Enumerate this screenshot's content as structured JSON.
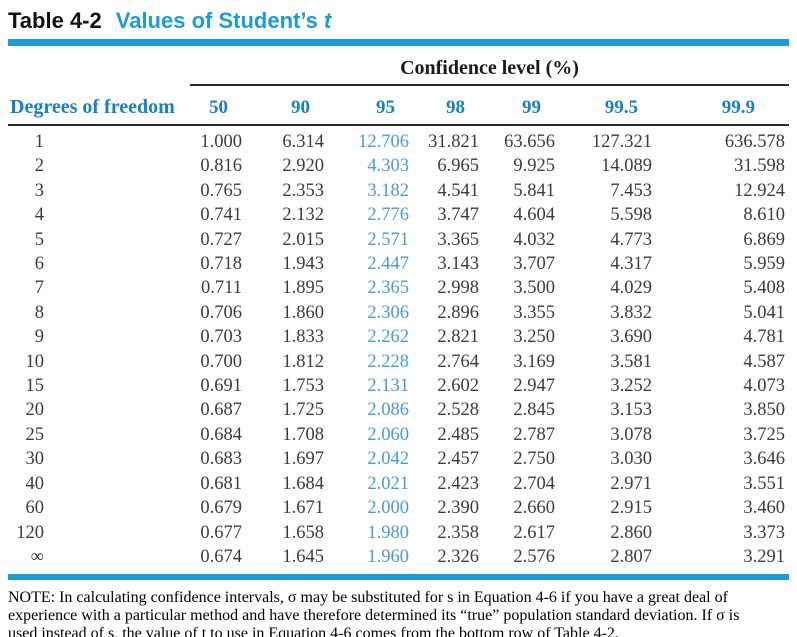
{
  "title": {
    "label": "Table 4-2",
    "subtitle": "Values of Student’s",
    "subtitle_suffix": "t"
  },
  "colors": {
    "accent_cyan": "#1b9bd7",
    "header_blue": "#1781c5",
    "highlight_blue": "#4a9bd3",
    "body_text": "#3c3c3c"
  },
  "table": {
    "group_header": "Confidence level (%)",
    "row_header_label": "Degrees of freedom",
    "columns": [
      "50",
      "90",
      "95",
      "98",
      "99",
      "99.5",
      "99.9"
    ],
    "highlight_column": "95",
    "rows": [
      {
        "df": "1",
        "values": [
          "1.000",
          "6.314",
          "12.706",
          "31.821",
          "63.656",
          "127.321",
          "636.578"
        ]
      },
      {
        "df": "2",
        "values": [
          "0.816",
          "2.920",
          "4.303",
          "6.965",
          "9.925",
          "14.089",
          "31.598"
        ]
      },
      {
        "df": "3",
        "values": [
          "0.765",
          "2.353",
          "3.182",
          "4.541",
          "5.841",
          "7.453",
          "12.924"
        ]
      },
      {
        "df": "4",
        "values": [
          "0.741",
          "2.132",
          "2.776",
          "3.747",
          "4.604",
          "5.598",
          "8.610"
        ]
      },
      {
        "df": "5",
        "values": [
          "0.727",
          "2.015",
          "2.571",
          "3.365",
          "4.032",
          "4.773",
          "6.869"
        ]
      },
      {
        "df": "6",
        "values": [
          "0.718",
          "1.943",
          "2.447",
          "3.143",
          "3.707",
          "4.317",
          "5.959"
        ]
      },
      {
        "df": "7",
        "values": [
          "0.711",
          "1.895",
          "2.365",
          "2.998",
          "3.500",
          "4.029",
          "5.408"
        ]
      },
      {
        "df": "8",
        "values": [
          "0.706",
          "1.860",
          "2.306",
          "2.896",
          "3.355",
          "3.832",
          "5.041"
        ]
      },
      {
        "df": "9",
        "values": [
          "0.703",
          "1.833",
          "2.262",
          "2.821",
          "3.250",
          "3.690",
          "4.781"
        ]
      },
      {
        "df": "10",
        "values": [
          "0.700",
          "1.812",
          "2.228",
          "2.764",
          "3.169",
          "3.581",
          "4.587"
        ]
      },
      {
        "df": "15",
        "values": [
          "0.691",
          "1.753",
          "2.131",
          "2.602",
          "2.947",
          "3.252",
          "4.073"
        ]
      },
      {
        "df": "20",
        "values": [
          "0.687",
          "1.725",
          "2.086",
          "2.528",
          "2.845",
          "3.153",
          "3.850"
        ]
      },
      {
        "df": "25",
        "values": [
          "0.684",
          "1.708",
          "2.060",
          "2.485",
          "2.787",
          "3.078",
          "3.725"
        ]
      },
      {
        "df": "30",
        "values": [
          "0.683",
          "1.697",
          "2.042",
          "2.457",
          "2.750",
          "3.030",
          "3.646"
        ]
      },
      {
        "df": "40",
        "values": [
          "0.681",
          "1.684",
          "2.021",
          "2.423",
          "2.704",
          "2.971",
          "3.551"
        ]
      },
      {
        "df": "60",
        "values": [
          "0.679",
          "1.671",
          "2.000",
          "2.390",
          "2.660",
          "2.915",
          "3.460"
        ]
      },
      {
        "df": "120",
        "values": [
          "0.677",
          "1.658",
          "1.980",
          "2.358",
          "2.617",
          "2.860",
          "3.373"
        ]
      },
      {
        "df": "∞",
        "values": [
          "0.674",
          "1.645",
          "1.960",
          "2.326",
          "2.576",
          "2.807",
          "3.291"
        ]
      }
    ]
  },
  "note": {
    "lines": [
      "NOTE: In calculating confidence intervals, σ may be substituted for s in Equation 4-6 if you have a great deal of",
      "experience with a particular method and have therefore determined its “true” population standard deviation. If σ is",
      "used instead of s, the value of t to use in Equation 4-6 comes from the bottom row of Table 4-2."
    ]
  }
}
